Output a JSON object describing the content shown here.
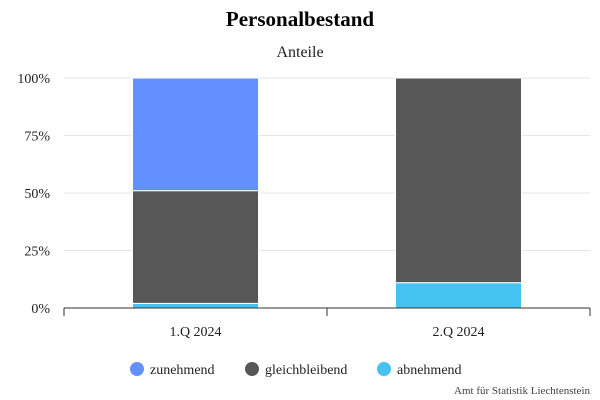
{
  "chart_data": {
    "type": "bar",
    "stacked": true,
    "title": "Personalbestand",
    "subtitle": "Anteile",
    "categories": [
      "1.Q 2024",
      "2.Q 2024"
    ],
    "series": [
      {
        "name": "zunehmend",
        "color": "#6390ff",
        "values": [
          49,
          0
        ]
      },
      {
        "name": "gleichbleibend",
        "color": "#575757",
        "values": [
          49,
          89
        ]
      },
      {
        "name": "abnehmend",
        "color": "#45c3f0",
        "values": [
          2,
          11
        ]
      }
    ],
    "stack_order": [
      "abnehmend",
      "gleichbleibend",
      "zunehmend"
    ],
    "ylim": [
      0,
      100
    ],
    "yticks": [
      0,
      25,
      50,
      75,
      100
    ],
    "ytick_labels": [
      "0%",
      "25%",
      "50%",
      "75%",
      "100%"
    ],
    "grid": true,
    "legend_position": "bottom",
    "credit": "Amt für Statistik Liechtenstein"
  }
}
